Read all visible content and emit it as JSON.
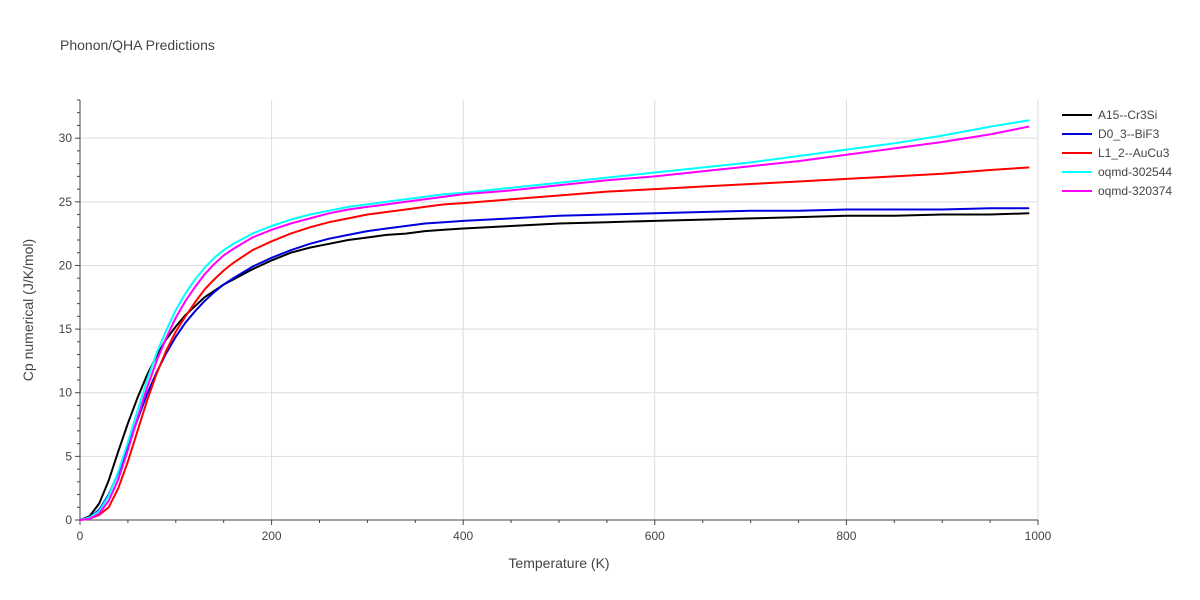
{
  "chart_data": {
    "type": "line",
    "title": "Phonon/QHA Predictions",
    "xlabel": "Temperature (K)",
    "ylabel": "Cp numerical (J/K/mol)",
    "xlim": [
      0,
      1000
    ],
    "ylim": [
      0,
      33
    ],
    "xticks": [
      0,
      200,
      400,
      600,
      800,
      1000
    ],
    "yticks": [
      0,
      5,
      10,
      15,
      20,
      25,
      30
    ],
    "grid": true,
    "legend_position": "top-right",
    "series": [
      {
        "name": "A15--Cr3Si",
        "color": "#000000",
        "x": [
          0,
          10,
          20,
          30,
          40,
          50,
          60,
          70,
          80,
          90,
          100,
          110,
          120,
          130,
          140,
          150,
          160,
          180,
          200,
          220,
          240,
          260,
          280,
          300,
          320,
          340,
          360,
          380,
          400,
          450,
          500,
          550,
          600,
          650,
          700,
          750,
          800,
          850,
          900,
          950,
          990
        ],
        "y": [
          0,
          0.3,
          1.3,
          3.1,
          5.4,
          7.6,
          9.6,
          11.4,
          12.9,
          14.2,
          15.2,
          16.1,
          16.8,
          17.5,
          18.0,
          18.5,
          18.9,
          19.7,
          20.4,
          21.0,
          21.4,
          21.7,
          22.0,
          22.2,
          22.4,
          22.5,
          22.7,
          22.8,
          22.9,
          23.1,
          23.3,
          23.4,
          23.5,
          23.6,
          23.7,
          23.8,
          23.9,
          23.9,
          24.0,
          24.0,
          24.1
        ]
      },
      {
        "name": "D0_3--BiF3",
        "color": "#0000dd",
        "x": [
          0,
          10,
          20,
          30,
          40,
          50,
          60,
          70,
          80,
          90,
          100,
          110,
          120,
          130,
          140,
          150,
          160,
          180,
          200,
          220,
          240,
          260,
          280,
          300,
          320,
          340,
          360,
          380,
          400,
          450,
          500,
          550,
          600,
          650,
          700,
          750,
          800,
          850,
          900,
          950,
          990
        ],
        "y": [
          0,
          0.2,
          0.8,
          2.0,
          3.7,
          5.8,
          7.9,
          9.9,
          11.6,
          13.1,
          14.4,
          15.5,
          16.4,
          17.2,
          17.9,
          18.5,
          19.0,
          19.9,
          20.6,
          21.2,
          21.7,
          22.1,
          22.4,
          22.7,
          22.9,
          23.1,
          23.3,
          23.4,
          23.5,
          23.7,
          23.9,
          24.0,
          24.1,
          24.2,
          24.3,
          24.3,
          24.4,
          24.4,
          24.4,
          24.5,
          24.5
        ]
      },
      {
        "name": "L1_2--AuCu3",
        "color": "#ff0000",
        "x": [
          0,
          10,
          20,
          30,
          40,
          50,
          60,
          70,
          80,
          90,
          100,
          110,
          120,
          130,
          140,
          150,
          160,
          180,
          200,
          220,
          240,
          260,
          280,
          300,
          320,
          340,
          360,
          380,
          400,
          450,
          500,
          550,
          600,
          650,
          700,
          750,
          800,
          850,
          900,
          950,
          990
        ],
        "y": [
          0,
          0.1,
          0.4,
          1.0,
          2.5,
          4.6,
          7.0,
          9.4,
          11.5,
          13.3,
          14.8,
          16.0,
          17.1,
          18.1,
          18.9,
          19.6,
          20.2,
          21.2,
          21.9,
          22.5,
          23.0,
          23.4,
          23.7,
          24.0,
          24.2,
          24.4,
          24.6,
          24.8,
          24.9,
          25.2,
          25.5,
          25.8,
          26.0,
          26.2,
          26.4,
          26.6,
          26.8,
          27.0,
          27.2,
          27.5,
          27.7
        ]
      },
      {
        "name": "oqmd-302544",
        "color": "#00ffff",
        "x": [
          0,
          10,
          20,
          30,
          40,
          50,
          60,
          70,
          80,
          90,
          100,
          110,
          120,
          130,
          140,
          150,
          160,
          180,
          200,
          220,
          240,
          260,
          280,
          300,
          320,
          340,
          360,
          380,
          400,
          450,
          500,
          550,
          600,
          650,
          700,
          750,
          800,
          850,
          900,
          950,
          990
        ],
        "y": [
          0,
          0.2,
          0.7,
          1.9,
          3.8,
          6.1,
          8.6,
          11.0,
          13.1,
          14.9,
          16.5,
          17.8,
          18.9,
          19.8,
          20.6,
          21.2,
          21.7,
          22.5,
          23.1,
          23.6,
          24.0,
          24.3,
          24.6,
          24.8,
          25.0,
          25.2,
          25.4,
          25.6,
          25.7,
          26.1,
          26.5,
          26.9,
          27.3,
          27.7,
          28.1,
          28.6,
          29.1,
          29.6,
          30.2,
          30.9,
          31.4
        ]
      },
      {
        "name": "oqmd-320374",
        "color": "#ff00ff",
        "x": [
          0,
          10,
          20,
          30,
          40,
          50,
          60,
          70,
          80,
          90,
          100,
          110,
          120,
          130,
          140,
          150,
          160,
          180,
          200,
          220,
          240,
          260,
          280,
          300,
          320,
          340,
          360,
          380,
          400,
          450,
          500,
          550,
          600,
          650,
          700,
          750,
          800,
          850,
          900,
          950,
          990
        ],
        "y": [
          0,
          0.1,
          0.5,
          1.5,
          3.2,
          5.5,
          8.0,
          10.4,
          12.5,
          14.3,
          15.9,
          17.2,
          18.3,
          19.3,
          20.1,
          20.8,
          21.3,
          22.2,
          22.8,
          23.3,
          23.7,
          24.1,
          24.4,
          24.6,
          24.8,
          25.0,
          25.2,
          25.4,
          25.6,
          25.9,
          26.3,
          26.7,
          27.0,
          27.4,
          27.8,
          28.2,
          28.7,
          29.2,
          29.7,
          30.3,
          30.9
        ]
      }
    ]
  }
}
